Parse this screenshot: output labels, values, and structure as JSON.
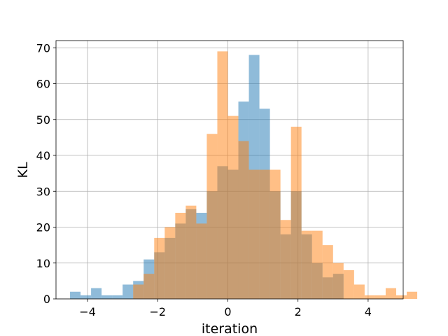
{
  "chart_data": {
    "type": "bar",
    "subtype": "histogram-overlay",
    "xlabel": "iteration",
    "ylabel": "KL",
    "xlim": [
      -4.9,
      5.0
    ],
    "ylim": [
      0,
      72
    ],
    "grid": true,
    "x_ticks": [
      -4,
      -2,
      0,
      2,
      4
    ],
    "x_tick_labels": [
      "−4",
      "−2",
      "0",
      "2",
      "4"
    ],
    "y_ticks": [
      0,
      10,
      20,
      30,
      40,
      50,
      60,
      70
    ],
    "y_tick_labels": [
      "0",
      "10",
      "20",
      "30",
      "40",
      "50",
      "60",
      "70"
    ],
    "series": [
      {
        "color": "#1f77b4",
        "opacity": 0.5,
        "bin_start": -4.5,
        "bin_width": 0.3,
        "values": [
          2,
          1,
          3,
          1,
          1,
          4,
          5,
          11,
          13,
          17,
          21,
          25,
          24,
          30,
          37,
          36,
          55,
          68,
          53,
          30,
          18,
          30,
          18,
          10,
          6,
          7
        ]
      },
      {
        "color": "#ff7f0e",
        "opacity": 0.5,
        "bin_start": -2.7,
        "bin_width": 0.3,
        "values": [
          4,
          7,
          17,
          20,
          24,
          26,
          21,
          46,
          69,
          51,
          44,
          36,
          36,
          36,
          22,
          48,
          19,
          19,
          15,
          10,
          8,
          4,
          1,
          1,
          3,
          1,
          2
        ]
      }
    ]
  }
}
